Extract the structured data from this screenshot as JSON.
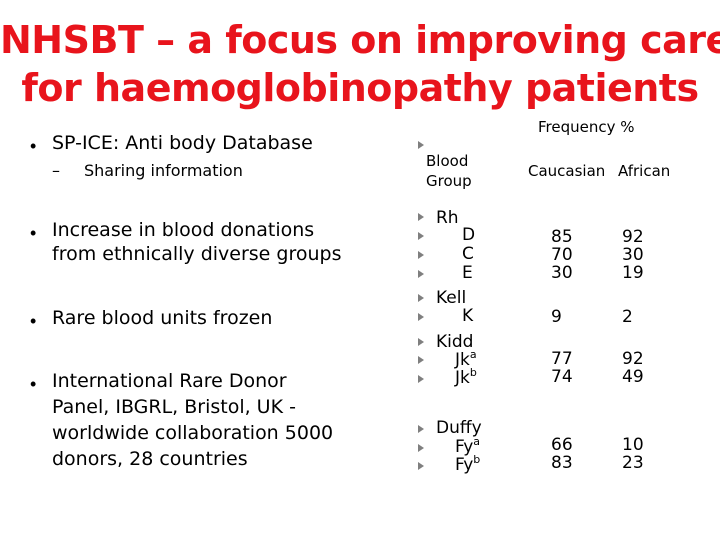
{
  "title": {
    "line1": "NHSBT – a focus on improving care",
    "line2": "for haemoglobinopathy patients"
  },
  "left": {
    "bullet_char": "•",
    "dash_char": "–",
    "item1": "SP-ICE: Anti body Database",
    "item1_sub": "Sharing information",
    "item2_line1": "Increase in blood donations",
    "item2_line2": "from ethnically diverse groups",
    "item3": "Rare blood units frozen",
    "item4_lines": [
      "International Rare Donor",
      "Panel, IBGRL, Bristol, UK -",
      "worldwide collaboration 5000",
      "donors, 28 countries"
    ]
  },
  "table": {
    "frequency_header": "Frequency %",
    "blood_label_line1": "Blood",
    "blood_label_line2": "Group",
    "col_caucasian": "Caucasian",
    "col_african": "African",
    "rh": "Rh",
    "d": "D",
    "c": "C",
    "e": "E",
    "kell": "Kell",
    "k": "K",
    "kidd": "Kidd",
    "jk": "Jk",
    "sup_a": "a",
    "sup_b": "b",
    "duffy": "Duffy",
    "fy": "Fy",
    "rh_caucasian": [
      "85",
      "70",
      "30"
    ],
    "rh_african": [
      "92",
      "30",
      "19"
    ],
    "kell_caucasian": "9",
    "kell_african": "2",
    "kidd_caucasian": [
      "77",
      "74"
    ],
    "kidd_african": [
      "92",
      "49"
    ],
    "duffy_caucasian": [
      "66",
      "83"
    ],
    "duffy_african": [
      "10",
      "23"
    ]
  }
}
